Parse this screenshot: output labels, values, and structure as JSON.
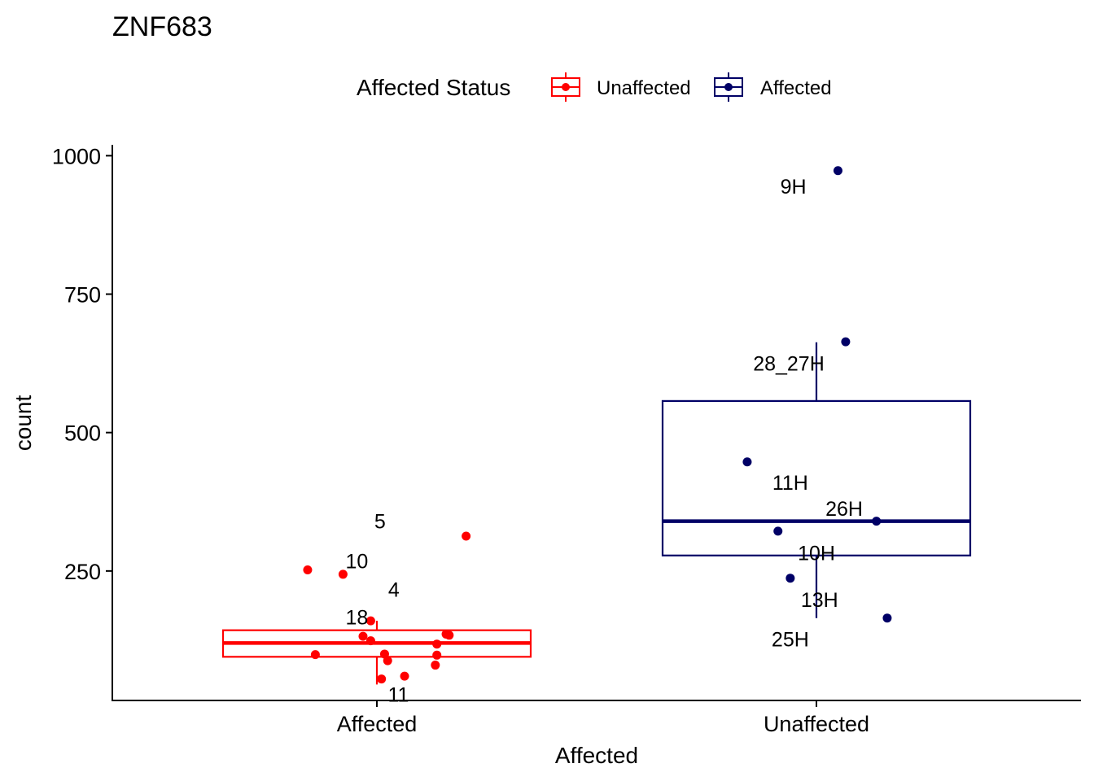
{
  "chart_data": {
    "type": "boxplot",
    "title": "ZNF683",
    "xlabel": "Affected",
    "ylabel": "count",
    "ylim": [
      0,
      1020
    ],
    "yticks": [
      250,
      500,
      750,
      1000
    ],
    "categories": [
      "Affected",
      "Unaffected"
    ],
    "legend": {
      "title": "Affected Status",
      "position": "top",
      "entries": [
        {
          "label": "Unaffected",
          "color": "#ff0000"
        },
        {
          "label": "Affected",
          "color": "#000066"
        }
      ]
    },
    "grid": false,
    "boxes": [
      {
        "category": "Affected",
        "group": "Unaffected",
        "color": "#ff0000",
        "whisker_low": 45,
        "q1": 95,
        "median": 120,
        "q3": 143,
        "whisker_high": 160
      },
      {
        "category": "Unaffected",
        "group": "Affected",
        "color": "#000066",
        "whisker_low": 165,
        "q1": 278,
        "median": 340,
        "q3": 557,
        "whisker_high": 663
      }
    ],
    "points": [
      {
        "category": "Affected",
        "jitter": 0.58,
        "y": 313,
        "color": "#ff0000"
      },
      {
        "category": "Affected",
        "jitter": -0.45,
        "y": 252,
        "color": "#ff0000"
      },
      {
        "category": "Affected",
        "jitter": -0.22,
        "y": 244,
        "color": "#ff0000"
      },
      {
        "category": "Affected",
        "jitter": -0.04,
        "y": 160,
        "color": "#ff0000"
      },
      {
        "category": "Affected",
        "jitter": -0.09,
        "y": 132,
        "color": "#ff0000"
      },
      {
        "category": "Affected",
        "jitter": -0.04,
        "y": 124,
        "color": "#ff0000"
      },
      {
        "category": "Affected",
        "jitter": 0.45,
        "y": 136,
        "color": "#ff0000"
      },
      {
        "category": "Affected",
        "jitter": 0.47,
        "y": 134,
        "color": "#ff0000"
      },
      {
        "category": "Affected",
        "jitter": 0.39,
        "y": 118,
        "color": "#ff0000"
      },
      {
        "category": "Affected",
        "jitter": -0.4,
        "y": 99,
        "color": "#ff0000"
      },
      {
        "category": "Affected",
        "jitter": 0.05,
        "y": 100,
        "color": "#ff0000"
      },
      {
        "category": "Affected",
        "jitter": 0.39,
        "y": 98,
        "color": "#ff0000"
      },
      {
        "category": "Affected",
        "jitter": 0.07,
        "y": 88,
        "color": "#ff0000"
      },
      {
        "category": "Affected",
        "jitter": 0.38,
        "y": 80,
        "color": "#ff0000"
      },
      {
        "category": "Affected",
        "jitter": 0.18,
        "y": 60,
        "color": "#ff0000"
      },
      {
        "category": "Affected",
        "jitter": 0.03,
        "y": 55,
        "color": "#ff0000"
      },
      {
        "category": "Unaffected",
        "jitter": 0.14,
        "y": 973,
        "color": "#000066"
      },
      {
        "category": "Unaffected",
        "jitter": 0.19,
        "y": 664,
        "color": "#000066"
      },
      {
        "category": "Unaffected",
        "jitter": -0.45,
        "y": 447,
        "color": "#000066"
      },
      {
        "category": "Unaffected",
        "jitter": 0.39,
        "y": 340,
        "color": "#000066"
      },
      {
        "category": "Unaffected",
        "jitter": -0.25,
        "y": 322,
        "color": "#000066"
      },
      {
        "category": "Unaffected",
        "jitter": -0.17,
        "y": 237,
        "color": "#000066"
      },
      {
        "category": "Unaffected",
        "jitter": 0.46,
        "y": 165,
        "color": "#000066"
      }
    ],
    "point_labels": [
      {
        "category": "Affected",
        "jitter": 0.02,
        "y": 340,
        "text": "5"
      },
      {
        "category": "Affected",
        "jitter": -0.13,
        "y": 268,
        "text": "10"
      },
      {
        "category": "Affected",
        "jitter": 0.11,
        "y": 217,
        "text": "4"
      },
      {
        "category": "Affected",
        "jitter": -0.13,
        "y": 167,
        "text": "18"
      },
      {
        "category": "Affected",
        "jitter": 0.14,
        "y": 27,
        "text": "11"
      },
      {
        "category": "Unaffected",
        "jitter": -0.15,
        "y": 945,
        "text": "9H"
      },
      {
        "category": "Unaffected",
        "jitter": -0.18,
        "y": 625,
        "text": "28_27H"
      },
      {
        "category": "Unaffected",
        "jitter": -0.17,
        "y": 410,
        "text": "11H"
      },
      {
        "category": "Unaffected",
        "jitter": 0.18,
        "y": 363,
        "text": "26H"
      },
      {
        "category": "Unaffected",
        "jitter": 0.0,
        "y": 283,
        "text": "10H"
      },
      {
        "category": "Unaffected",
        "jitter": 0.02,
        "y": 198,
        "text": "13H"
      },
      {
        "category": "Unaffected",
        "jitter": -0.17,
        "y": 127,
        "text": "25H"
      }
    ]
  }
}
